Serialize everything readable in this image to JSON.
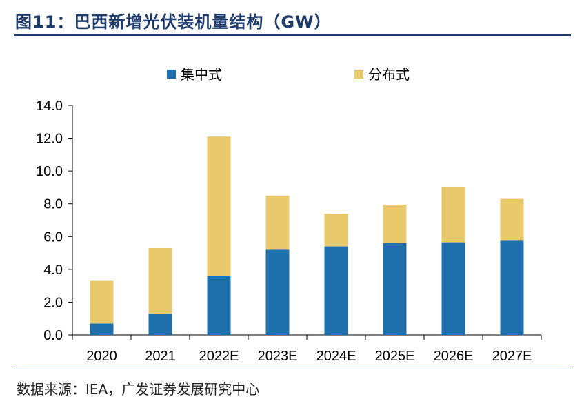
{
  "header": {
    "title": "图11：巴西新增光伏装机量结构（GW）"
  },
  "footer": {
    "source": "数据来源：IEA，广发证券发展研究中心"
  },
  "chart_data": {
    "type": "bar",
    "stacked": true,
    "categories": [
      "2020",
      "2021",
      "2022E",
      "2023E",
      "2024E",
      "2025E",
      "2026E",
      "2027E"
    ],
    "series": [
      {
        "name": "集中式",
        "color": "#1f6fad",
        "values": [
          0.7,
          1.3,
          3.6,
          5.2,
          5.4,
          5.6,
          5.65,
          5.75
        ]
      },
      {
        "name": "分布式",
        "color": "#e8c96b",
        "values": [
          2.6,
          4.0,
          8.5,
          3.3,
          2.0,
          2.35,
          3.35,
          2.55
        ]
      }
    ],
    "yticks": [
      "0.0",
      "2.0",
      "4.0",
      "6.0",
      "8.0",
      "10.0",
      "12.0",
      "14.0"
    ],
    "ylim": [
      0,
      14
    ],
    "legend_position": "top",
    "grid": false
  }
}
